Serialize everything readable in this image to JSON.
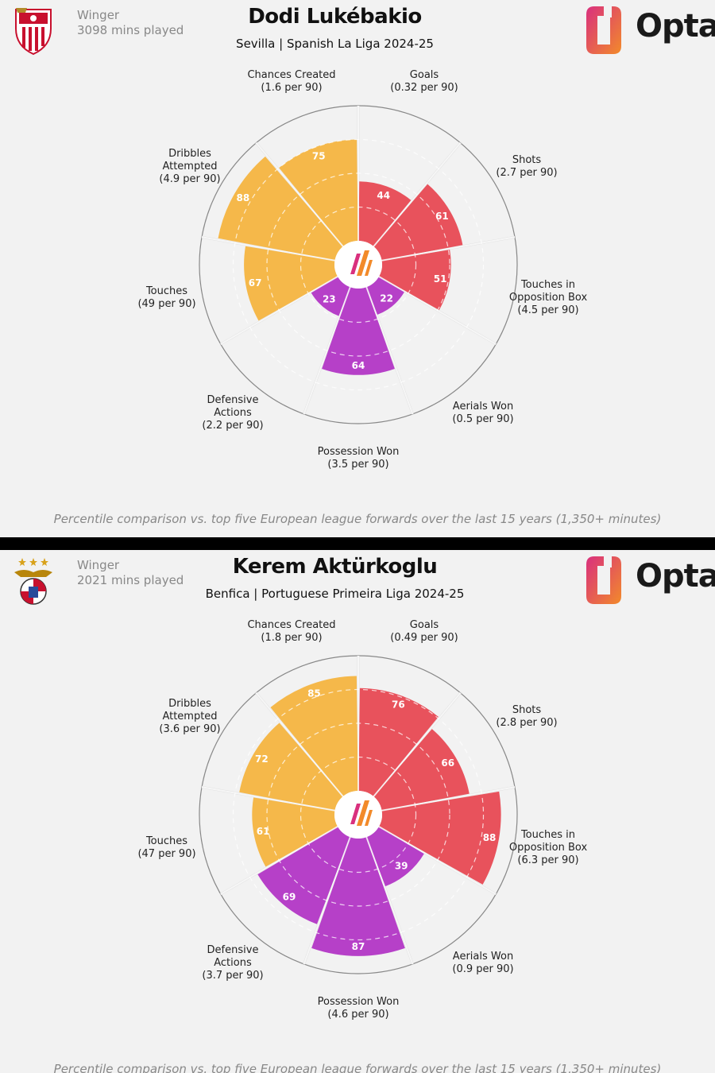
{
  "chart_data": [
    {
      "type": "radar",
      "role": "Winger",
      "minutes": "3098 mins played",
      "player": "Dodi Lukébakio",
      "team": "Sevilla | Spanish La Liga 2024-25",
      "brand": "Opta",
      "footnote": "Percentile comparison vs. top five European league forwards over the last 15 years (1,350+ minutes)",
      "categories": [
        {
          "label": [
            "Goals",
            "(0.32 per 90)"
          ],
          "value": 44,
          "group": "attack"
        },
        {
          "label": [
            "Shots",
            "(2.7 per 90)"
          ],
          "value": 61,
          "group": "attack"
        },
        {
          "label": [
            "Touches in",
            "Opposition Box",
            "(4.5 per 90)"
          ],
          "value": 51,
          "group": "attack"
        },
        {
          "label": [
            "Aerials Won",
            "(0.5 per 90)"
          ],
          "value": 22,
          "group": "defence"
        },
        {
          "label": [
            "Possession Won",
            "(3.5 per 90)"
          ],
          "value": 64,
          "group": "defence"
        },
        {
          "label": [
            "Defensive",
            "Actions",
            "(2.2 per 90)"
          ],
          "value": 23,
          "group": "defence"
        },
        {
          "label": [
            "Touches",
            "(49 per 90)"
          ],
          "value": 67,
          "group": "possession"
        },
        {
          "label": [
            "Dribbles",
            "Attempted",
            "(4.9 per 90)"
          ],
          "value": 88,
          "group": "possession"
        },
        {
          "label": [
            "Chances Created",
            "(1.6 per 90)"
          ],
          "value": 75,
          "group": "possession"
        }
      ],
      "range": [
        0,
        100
      ]
    },
    {
      "type": "radar",
      "role": "Winger",
      "minutes": "2021 mins played",
      "player": "Kerem Aktürkoglu",
      "team": "Benfica | Portuguese Primeira Liga 2024-25",
      "brand": "Opta",
      "footnote": "Percentile comparison vs. top five European league forwards over the last 15 years (1,350+ minutes)",
      "categories": [
        {
          "label": [
            "Goals",
            "(0.49 per 90)"
          ],
          "value": 76,
          "group": "attack"
        },
        {
          "label": [
            "Shots",
            "(2.8 per 90)"
          ],
          "value": 66,
          "group": "attack"
        },
        {
          "label": [
            "Touches in",
            "Opposition Box",
            "(6.3 per 90)"
          ],
          "value": 88,
          "group": "attack"
        },
        {
          "label": [
            "Aerials Won",
            "(0.9 per 90)"
          ],
          "value": 39,
          "group": "defence"
        },
        {
          "label": [
            "Possession Won",
            "(4.6 per 90)"
          ],
          "value": 87,
          "group": "defence"
        },
        {
          "label": [
            "Defensive",
            "Actions",
            "(3.7 per 90)"
          ],
          "value": 69,
          "group": "defence"
        },
        {
          "label": [
            "Touches",
            "(47 per 90)"
          ],
          "value": 61,
          "group": "possession"
        },
        {
          "label": [
            "Dribbles",
            "Attempted",
            "(3.6 per 90)"
          ],
          "value": 72,
          "group": "possession"
        },
        {
          "label": [
            "Chances Created",
            "(1.8 per 90)"
          ],
          "value": 85,
          "group": "possession"
        }
      ],
      "range": [
        0,
        100
      ]
    }
  ],
  "colors": {
    "attack": "#e8525c",
    "defence": "#b640c8",
    "possession": "#f5b84a",
    "grid": "#e2e2e2",
    "ring": "#ffffff",
    "outer": "#888888",
    "logo_orange": "#f28a2a",
    "logo_magenta": "#d9307e"
  },
  "icons": {
    "club_1": "sevilla-crest-icon",
    "club_2": "benfica-crest-icon",
    "brand": "opta-logo-icon",
    "center": "slash-logo-icon"
  }
}
